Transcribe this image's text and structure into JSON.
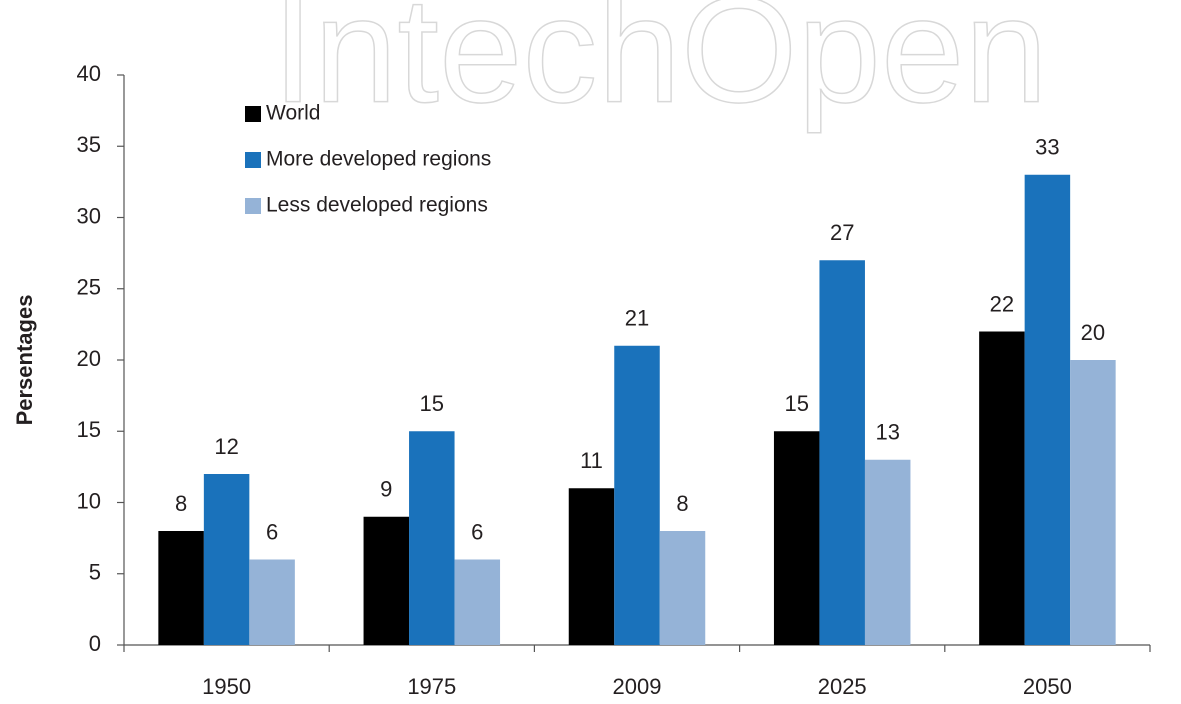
{
  "chart_data": {
    "type": "bar",
    "watermark": "IntechOpen",
    "y_label": "Persentages",
    "categories": [
      "1950",
      "1975",
      "2009",
      "2025",
      "2050"
    ],
    "series": [
      {
        "name": "World",
        "color": "#000000",
        "values": [
          8,
          9,
          11,
          15,
          22
        ]
      },
      {
        "name": "More developed regions",
        "color": "#1a72bb",
        "values": [
          12,
          15,
          21,
          27,
          33
        ]
      },
      {
        "name": "Less developed regions",
        "color": "#95b3d7",
        "values": [
          6,
          6,
          8,
          13,
          20
        ]
      }
    ],
    "ylim": [
      0,
      40
    ],
    "yticks": [
      0,
      5,
      10,
      15,
      20,
      25,
      30,
      35,
      40
    ],
    "grid": false,
    "legend": "top-left"
  }
}
